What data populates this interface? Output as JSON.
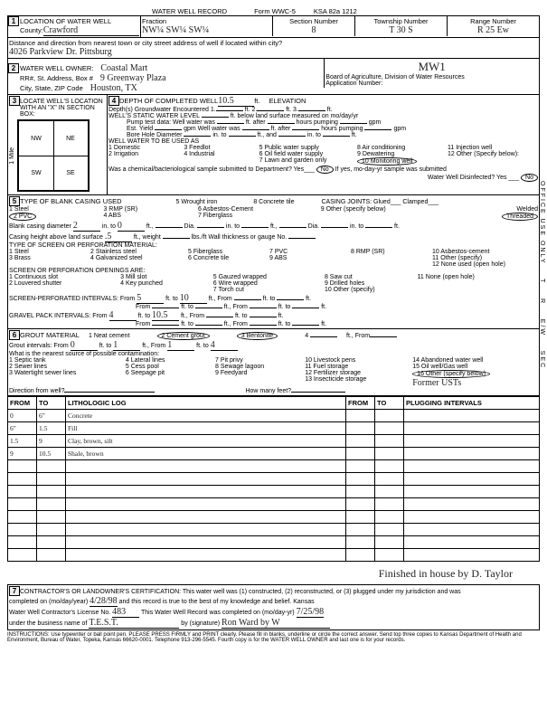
{
  "form": {
    "title": "WATER WELL RECORD",
    "form_no": "Form WWC-5",
    "ksa": "KSA 82a 1212"
  },
  "sec1": {
    "heading": "LOCATION OF WATER WELL",
    "county_label": "County:",
    "county": "Crawford",
    "fraction_label": "Fraction",
    "fraction": "NW¼ SW¼ SW¼",
    "section_label": "Section Number",
    "section": "8",
    "township_label": "Township Number",
    "township": "T 30 S",
    "range_label": "Range Number",
    "range": "R 25 Ew",
    "dist_label": "Distance and direction from nearest town or city street address of well if located within city?",
    "dist": "4026 Parkview Dr. Pittsburg"
  },
  "sec2": {
    "owner_label": "WATER WELL OWNER:",
    "owner": "Coastal Mart",
    "addr_label": "RR#, St. Address, Box #",
    "addr": "9 Greenway Plaza",
    "city_label": "City, State, ZIP Code",
    "city": "Houston, TX",
    "mw": "MW1",
    "board": "Board of Agriculture, Division of Water Resources",
    "appno_label": "Application Number:"
  },
  "sec3": {
    "heading": "LOCATE WELL'S LOCATION WITH AN \"X\" IN SECTION BOX:",
    "nw": "NW",
    "ne": "NE",
    "sw": "SW",
    "se": "SE",
    "mile": "1 Mile"
  },
  "sec4": {
    "heading": "DEPTH OF COMPLETED WELL",
    "depth": "10.5",
    "ft": "ft.",
    "elev_label": "ELEVATION",
    "gw_label": "Depth(s) Groundwater Encountered",
    "gw1": "1.",
    "gw2": "2.",
    "gw3": "3.",
    "swl_label": "WELL'S STATIC WATER LEVEL",
    "swl_below": "ft. below land surface measured on mo/day/yr",
    "pump_label": "Pump test data:",
    "wet_label": "Well water was",
    "after": "ft. after",
    "hrs": "hours pumping",
    "gpm": "gpm",
    "yield_label": "Est. Yield",
    "bore_label": "Bore Hole Diameter",
    "in_to": "in. to",
    "and": "ft., and",
    "use_label": "WELL WATER TO BE USED AS",
    "u1": "1 Domestic",
    "u2": "2 Irrigation",
    "u3": "3 Feedlot",
    "u4": "4 Industrial",
    "u5": "5 Public water supply",
    "u6": "6 Oil field water supply",
    "u7": "7 Lawn and garden only",
    "u8": "8 Air conditioning",
    "u9": "9 Dewatering",
    "u10": "10 Monitoring well",
    "u11": "11 Injection well",
    "u12": "12 Other (Specify below):",
    "chem_label": "Was a chemical/bacteriological sample submitted to Department? Yes___",
    "no": "No",
    "ifyes": "If yes, mo-day-yr sample was submitted",
    "disinfect": "Water Well Disinfected? Yes",
    "no2": "No"
  },
  "sec5": {
    "heading": "TYPE OF BLANK CASING USED",
    "c1": "1 Steel",
    "c2": "2 PVC",
    "c3": "3 RMP (SR)",
    "c4": "4 ABS",
    "c5": "5 Wrought iron",
    "c6": "6 Asbestos-Cement",
    "c7": "7 Fiberglass",
    "c8": "8 Concrete tile",
    "c9": "9 Other (specify below)",
    "joints": "CASING JOINTS: Glued___ Clamped___",
    "welded": "Welded",
    "threaded": "Threaded",
    "diam_label": "Blank casing diameter",
    "diam": "2",
    "into": "in. to",
    "to_val": "0",
    "height_label": "Casing height above land surface",
    "height": ".5",
    "weight_label": "ft., weight",
    "thick_label": "lbs./ft Wall thickness or gauge No.",
    "screen_hdr": "TYPE OF SCREEN OR PERFORATION MATERIAL:",
    "s1": "1 Steel",
    "s2": "2 Stainless steel",
    "s3": "3 Brass",
    "s4": "4 Galvanized steel",
    "s5": "5 Fiberglass",
    "s6": "6 Concrete tile",
    "s7": "7 PVC",
    "s8": "8 RMP (SR)",
    "s9": "9 ABS",
    "s10": "10 Asbestos-cement",
    "s11": "11 Other (specify)",
    "s12": "12 None used (open hole)",
    "open_hdr": "SCREEN OR PERFORATION OPENINGS ARE:",
    "o1": "1 Continuous slot",
    "o2": "2 Louvered shutter",
    "o3": "3 Mill slot",
    "o4": "4 Key punched",
    "o5": "5 Gauzed wrapped",
    "o6": "6 Wire wrapped",
    "o7": "7 Torch cut",
    "o8": "8 Saw cut",
    "o9": "9 Drilled holes",
    "o10": "10 Other (specify)",
    "o11": "11 None (open hole)",
    "perf_label": "SCREEN-PERFORATED INTERVALS:",
    "from": "From",
    "to": "ft. to",
    "ft_from": "ft., From",
    "perf_from1": "5",
    "perf_to1": "10",
    "gravel_label": "GRAVEL PACK INTERVALS:",
    "gravel_from1": "4",
    "gravel_to1": "10.5"
  },
  "sec6": {
    "heading": "GROUT MATERIAL",
    "g1": "1 Neat cement",
    "g2": "2 Cement grout",
    "g3": "3 Bentonite",
    "g4_label": "ft., From",
    "gi_label": "Grout intervals: From",
    "gi_from": "0",
    "gi_to_lbl": "ft. to",
    "gi_to": "1",
    "gi_from2_lbl": "ft., From",
    "gi_from2": "1",
    "gi_to2_lbl": "ft. to",
    "gi_to2": "4",
    "contam_label": "What is the nearest source of possible contamination:",
    "p1": "1 Septic tank",
    "p2": "2 Sewer lines",
    "p3": "3 Watertight sewer lines",
    "p4": "4 Lateral lines",
    "p5": "5 Cess pool",
    "p6": "6 Seepage pit",
    "p7": "7 Pit privy",
    "p8": "8 Sewage lagoon",
    "p9": "9 Feedyard",
    "p10": "10 Livestock pens",
    "p11": "11 Fuel storage",
    "p12": "12 Fertilizer storage",
    "p13": "13 Insecticide storage",
    "p14": "14 Abandoned water well",
    "p15": "15 Oil well/Gas well",
    "p16": "16 Other (specify below)",
    "p16_val": "Former USTs",
    "dir_label": "Direction from well?",
    "feet_label": "How many feet?"
  },
  "log": {
    "hdr_from": "FROM",
    "hdr_to": "TO",
    "hdr_litho": "LITHOLOGIC LOG",
    "hdr_from2": "FROM",
    "hdr_to2": "TO",
    "hdr_plug": "PLUGGING INTERVALS",
    "rows": [
      {
        "from": "0",
        "to": "6\"",
        "desc": "Concrete"
      },
      {
        "from": "6\"",
        "to": "1.5",
        "desc": "Fill"
      },
      {
        "from": "1.5",
        "to": "9",
        "desc": "Clay, brown, silt"
      },
      {
        "from": "9",
        "to": "10.5",
        "desc": "Shale, brown"
      }
    ]
  },
  "sig_note": "Finished in house by D. Taylor",
  "sec7": {
    "heading": "CONTRACTOR'S OR LANDOWNER'S CERTIFICATION: This water well was (1) constructed, (2) reconstructed, or (3) plugged under my jurisdiction and was",
    "compl_label": "completed on (mo/day/year)",
    "compl": "4/28/98",
    "record_true": "and this record is true to the best of my knowledge and belief. Kansas",
    "lic_label": "Water Well Contractor's License No.",
    "lic": "483",
    "rec_compl_label": "This Water Well Record was completed on (mo/day-yr)",
    "rec_compl": "7/25/98",
    "bus_label": "under the business name of",
    "bus": "T.E.S.T.",
    "sig_label": "by (signature)",
    "sig": "Ron Ward by W"
  },
  "footer": "INSTRUCTIONS: Use typewriter or ball point pen. PLEASE PRESS FIRMLY and PRINT clearly. Please fill in blanks, underline or circle the correct answer. Send top three copies to Kansas Department of Health and Environment, Bureau of Water, Topeka, Kansas 66620-0001. Telephone 913-296-5545. Fourth copy is for the WATER WELL OWNER and last one is for your records."
}
